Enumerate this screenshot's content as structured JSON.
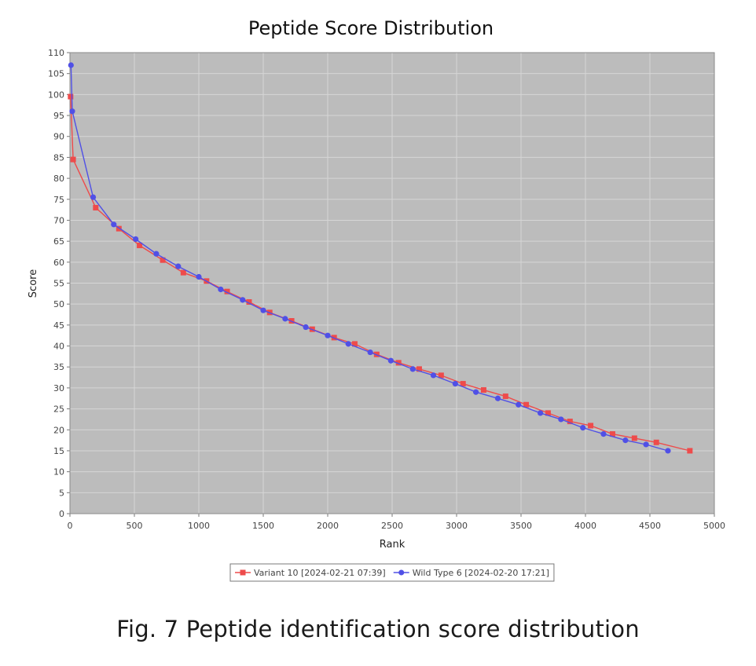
{
  "chart_data": {
    "type": "line",
    "title": "Peptide Score Distribution",
    "xlabel": "Rank",
    "ylabel": "Score",
    "xlim": [
      0,
      5000
    ],
    "ylim": [
      0,
      110
    ],
    "x_ticks": [
      0,
      500,
      1000,
      1500,
      2000,
      2500,
      3000,
      3500,
      4000,
      4500,
      5000
    ],
    "y_ticks": [
      0,
      5,
      10,
      15,
      20,
      25,
      30,
      35,
      40,
      45,
      50,
      55,
      60,
      65,
      70,
      75,
      80,
      85,
      90,
      95,
      100,
      105,
      110
    ],
    "grid": true,
    "legend_position": "bottom",
    "colors": {
      "plot_background": "#bcbcbc",
      "grid": "#d6d6d6"
    },
    "series": [
      {
        "name": "Variant 10 [2024-02-21 07:39]",
        "color": "#ee4b4b",
        "marker": "square",
        "x": [
          5,
          25,
          200,
          380,
          540,
          720,
          880,
          1060,
          1220,
          1390,
          1550,
          1720,
          1880,
          2050,
          2210,
          2380,
          2550,
          2710,
          2880,
          3050,
          3210,
          3380,
          3540,
          3710,
          3880,
          4040,
          4210,
          4380,
          4550,
          4810
        ],
        "values": [
          99.5,
          84.5,
          73,
          68,
          64,
          60.5,
          57.5,
          55.5,
          53,
          50.5,
          48,
          46,
          44,
          42,
          40.5,
          38,
          36,
          34.5,
          33,
          31,
          29.5,
          28,
          26,
          24,
          22,
          21,
          19,
          18,
          17,
          15
        ]
      },
      {
        "name": "Wild Type 6 [2024-02-20 17:21]",
        "color": "#5050e6",
        "marker": "circle",
        "x": [
          8,
          18,
          180,
          340,
          510,
          670,
          840,
          1000,
          1170,
          1340,
          1500,
          1670,
          1830,
          2000,
          2160,
          2330,
          2490,
          2660,
          2820,
          2990,
          3150,
          3320,
          3480,
          3650,
          3810,
          3980,
          4140,
          4310,
          4470,
          4640
        ],
        "values": [
          107,
          96,
          75.5,
          69,
          65.5,
          62,
          59,
          56.5,
          53.5,
          51,
          48.5,
          46.5,
          44.5,
          42.5,
          40.5,
          38.5,
          36.5,
          34.5,
          33,
          31,
          29,
          27.5,
          26,
          24,
          22.5,
          20.5,
          19,
          17.5,
          16.5,
          15
        ]
      }
    ]
  },
  "caption": "Fig. 7  Peptide identification score distribution"
}
